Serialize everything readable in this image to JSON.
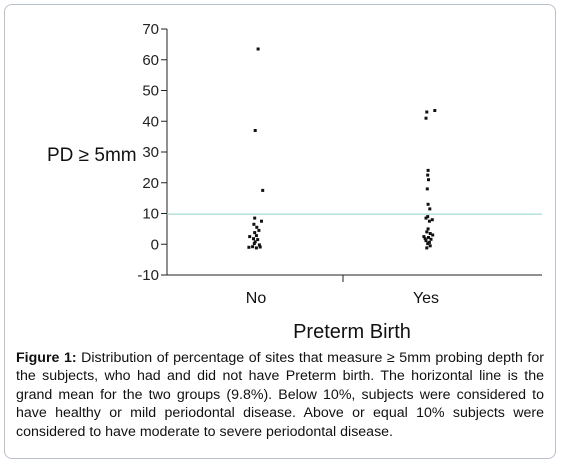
{
  "figure": {
    "caption_label": "Figure 1:",
    "caption_text": " Distribution of percentage of sites that measure ≥ 5mm probing depth for the subjects, who had and did not have Preterm birth. The horizontal line is the grand mean for the two groups (9.8%). Below 10%, subjects were considered to have healthy or mild periodontal disease. Above or equal 10% subjects were considered to have moderate to severe periodontal disease."
  },
  "colors": {
    "mean_line": "#8fd3c8",
    "points": "#111111",
    "axis": "#222222"
  },
  "chart_data": {
    "type": "scatter",
    "title": "",
    "xlabel": "Preterm Birth",
    "ylabel": "PD ≥ 5mm",
    "categories": [
      "No",
      "Yes"
    ],
    "ylim": [
      -10,
      70
    ],
    "yticks": [
      -10,
      0,
      10,
      20,
      30,
      40,
      50,
      60,
      70
    ],
    "ytick_labels": [
      "-10",
      "0",
      "10",
      "20",
      "30",
      "40",
      "50",
      "60",
      "70"
    ],
    "grand_mean": 9.8,
    "grid": false,
    "legend": "none",
    "series": [
      {
        "category": "No",
        "points": [
          {
            "dx": 0.05,
            "y": 63.5
          },
          {
            "dx": -0.02,
            "y": 37
          },
          {
            "dx": 0.16,
            "y": 17.5
          },
          {
            "dx": -0.03,
            "y": 8.5
          },
          {
            "dx": 0.13,
            "y": 7.5
          },
          {
            "dx": -0.05,
            "y": 6.5
          },
          {
            "dx": 0.02,
            "y": 5.5
          },
          {
            "dx": 0.07,
            "y": 4.5
          },
          {
            "dx": -0.03,
            "y": 3.8
          },
          {
            "dx": -0.15,
            "y": 2.5
          },
          {
            "dx": 0.01,
            "y": 2.8
          },
          {
            "dx": -0.06,
            "y": 1.8
          },
          {
            "dx": 0.04,
            "y": 1.5
          },
          {
            "dx": -0.02,
            "y": 0.8
          },
          {
            "dx": -0.04,
            "y": 0.2
          },
          {
            "dx": 0.08,
            "y": -0.2
          },
          {
            "dx": -0.17,
            "y": -1
          },
          {
            "dx": -0.08,
            "y": -0.8
          },
          {
            "dx": 0.1,
            "y": -0.9
          },
          {
            "dx": 0.01,
            "y": -1.2
          }
        ]
      },
      {
        "category": "Yes",
        "points": [
          {
            "dx": 0.21,
            "y": 43.5
          },
          {
            "dx": 0.02,
            "y": 43
          },
          {
            "dx": 0.0,
            "y": 41
          },
          {
            "dx": 0.05,
            "y": 24
          },
          {
            "dx": 0.04,
            "y": 22.5
          },
          {
            "dx": 0.06,
            "y": 21
          },
          {
            "dx": 0.03,
            "y": 18
          },
          {
            "dx": 0.05,
            "y": 13
          },
          {
            "dx": 0.09,
            "y": 11.5
          },
          {
            "dx": 0.04,
            "y": 9
          },
          {
            "dx": 0.0,
            "y": 8.5
          },
          {
            "dx": 0.15,
            "y": 8
          },
          {
            "dx": 0.08,
            "y": 7.5
          },
          {
            "dx": 0.05,
            "y": 5
          },
          {
            "dx": 0.02,
            "y": 4
          },
          {
            "dx": 0.1,
            "y": 3.5
          },
          {
            "dx": 0.16,
            "y": 3
          },
          {
            "dx": -0.05,
            "y": 2.5
          },
          {
            "dx": 0.06,
            "y": 2.2
          },
          {
            "dx": -0.02,
            "y": 1.8
          },
          {
            "dx": 0.12,
            "y": 1.6
          },
          {
            "dx": 0.0,
            "y": 1.2
          },
          {
            "dx": 0.08,
            "y": 0.6
          },
          {
            "dx": 0.04,
            "y": 0.2
          },
          {
            "dx": 0.1,
            "y": -0.5
          },
          {
            "dx": 0.02,
            "y": -1.2
          }
        ]
      }
    ]
  }
}
